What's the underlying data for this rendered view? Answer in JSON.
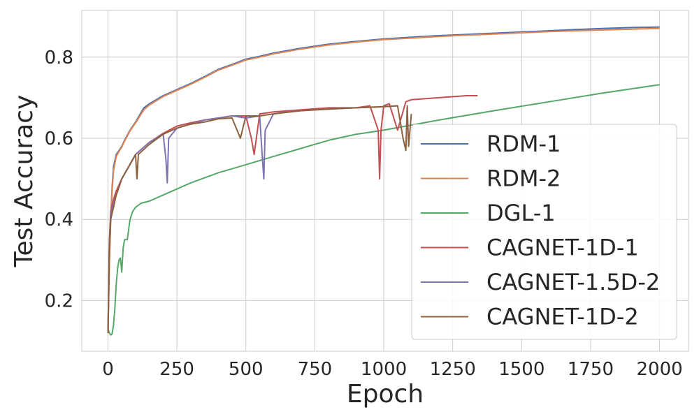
{
  "chart_data": {
    "type": "line",
    "title": "",
    "xlabel": "Epoch",
    "ylabel": "Test Accuracy",
    "xlim": [
      -95,
      2105
    ],
    "ylim": [
      0.075,
      0.915
    ],
    "xticks": [
      0,
      250,
      500,
      750,
      1000,
      1250,
      1500,
      1750,
      2000
    ],
    "xtick_labels": [
      "0",
      "250",
      "500",
      "750",
      "1000",
      "1250",
      "1500",
      "1750",
      "2000"
    ],
    "yticks": [
      0.2,
      0.4,
      0.6,
      0.8
    ],
    "ytick_labels": [
      "0.2",
      "0.4",
      "0.6",
      "0.8"
    ],
    "grid": true,
    "legend_position": "lower-right",
    "series": [
      {
        "name": "RDM-1",
        "color": "#4c72b0",
        "x": [
          0,
          5,
          10,
          15,
          20,
          30,
          40,
          50,
          60,
          80,
          100,
          130,
          150,
          200,
          250,
          300,
          350,
          400,
          450,
          500,
          550,
          600,
          700,
          800,
          900,
          1000,
          1100,
          1200,
          1300,
          1400,
          1500,
          1600,
          1700,
          1800,
          1900,
          2000
        ],
        "y": [
          0.12,
          0.3,
          0.4,
          0.48,
          0.53,
          0.56,
          0.57,
          0.58,
          0.595,
          0.62,
          0.64,
          0.675,
          0.685,
          0.705,
          0.72,
          0.735,
          0.752,
          0.77,
          0.782,
          0.795,
          0.802,
          0.81,
          0.822,
          0.832,
          0.839,
          0.845,
          0.849,
          0.853,
          0.856,
          0.859,
          0.862,
          0.865,
          0.868,
          0.871,
          0.873,
          0.874
        ]
      },
      {
        "name": "RDM-2",
        "color": "#dd8452",
        "x": [
          0,
          5,
          10,
          15,
          20,
          30,
          40,
          50,
          60,
          80,
          100,
          130,
          150,
          200,
          250,
          300,
          350,
          400,
          450,
          500,
          550,
          600,
          700,
          800,
          900,
          1000,
          1100,
          1200,
          1300,
          1400,
          1500,
          1600,
          1700,
          1800,
          1900,
          2000
        ],
        "y": [
          0.12,
          0.29,
          0.41,
          0.47,
          0.52,
          0.555,
          0.568,
          0.578,
          0.593,
          0.618,
          0.638,
          0.67,
          0.682,
          0.703,
          0.718,
          0.733,
          0.75,
          0.768,
          0.78,
          0.793,
          0.8,
          0.808,
          0.82,
          0.83,
          0.837,
          0.843,
          0.847,
          0.851,
          0.854,
          0.857,
          0.86,
          0.863,
          0.865,
          0.867,
          0.869,
          0.871
        ]
      },
      {
        "name": "DGL-1",
        "color": "#55a868",
        "x": [
          0,
          5,
          10,
          15,
          20,
          25,
          30,
          35,
          40,
          45,
          50,
          55,
          60,
          70,
          80,
          90,
          100,
          120,
          150,
          200,
          300,
          400,
          500,
          600,
          700,
          750,
          800,
          900,
          1000,
          1200,
          1400,
          1600,
          1800,
          2000
        ],
        "y": [
          0.13,
          0.12,
          0.115,
          0.118,
          0.14,
          0.18,
          0.24,
          0.28,
          0.3,
          0.305,
          0.27,
          0.33,
          0.35,
          0.35,
          0.4,
          0.42,
          0.43,
          0.44,
          0.445,
          0.46,
          0.49,
          0.515,
          0.535,
          0.555,
          0.575,
          0.585,
          0.595,
          0.61,
          0.62,
          0.645,
          0.668,
          0.69,
          0.712,
          0.732
        ]
      },
      {
        "name": "CAGNET-1D-1",
        "color": "#c44e52",
        "x": [
          0,
          5,
          10,
          20,
          30,
          50,
          75,
          100,
          150,
          200,
          250,
          300,
          350,
          400,
          450,
          500,
          520,
          530,
          550,
          600,
          700,
          800,
          900,
          950,
          980,
          985,
          990,
          1000,
          1020,
          1050,
          1080,
          1100,
          1200,
          1300,
          1340
        ],
        "y": [
          0.12,
          0.35,
          0.42,
          0.45,
          0.47,
          0.5,
          0.53,
          0.56,
          0.59,
          0.612,
          0.63,
          0.638,
          0.645,
          0.65,
          0.655,
          0.655,
          0.6,
          0.56,
          0.66,
          0.665,
          0.67,
          0.675,
          0.675,
          0.68,
          0.62,
          0.5,
          0.62,
          0.68,
          0.685,
          0.62,
          0.69,
          0.695,
          0.7,
          0.705,
          0.705
        ]
      },
      {
        "name": "CAGNET-1.5D-2",
        "color": "#8172b2",
        "x": [
          0,
          5,
          10,
          20,
          30,
          50,
          75,
          100,
          150,
          200,
          210,
          215,
          220,
          250,
          300,
          350,
          400,
          450,
          500,
          550,
          560,
          565,
          570,
          600,
          650,
          700,
          800,
          900,
          1000,
          1050
        ],
        "y": [
          0.12,
          0.34,
          0.41,
          0.44,
          0.46,
          0.5,
          0.53,
          0.56,
          0.59,
          0.61,
          0.55,
          0.49,
          0.6,
          0.625,
          0.635,
          0.645,
          0.65,
          0.655,
          0.65,
          0.655,
          0.55,
          0.5,
          0.62,
          0.66,
          0.665,
          0.668,
          0.672,
          0.675,
          0.678,
          0.68
        ]
      },
      {
        "name": "CAGNET-1D-2",
        "color": "#8c613c",
        "x": [
          0,
          5,
          10,
          20,
          30,
          50,
          75,
          100,
          105,
          110,
          150,
          200,
          250,
          300,
          350,
          400,
          450,
          480,
          500,
          550,
          600,
          700,
          800,
          900,
          1000,
          1050,
          1070,
          1080,
          1085,
          1090,
          1100
        ],
        "y": [
          0.12,
          0.33,
          0.4,
          0.43,
          0.46,
          0.5,
          0.53,
          0.56,
          0.5,
          0.56,
          0.585,
          0.61,
          0.625,
          0.635,
          0.64,
          0.648,
          0.65,
          0.6,
          0.655,
          0.655,
          0.66,
          0.668,
          0.672,
          0.675,
          0.678,
          0.68,
          0.6,
          0.57,
          0.68,
          0.58,
          0.66
        ]
      }
    ]
  }
}
